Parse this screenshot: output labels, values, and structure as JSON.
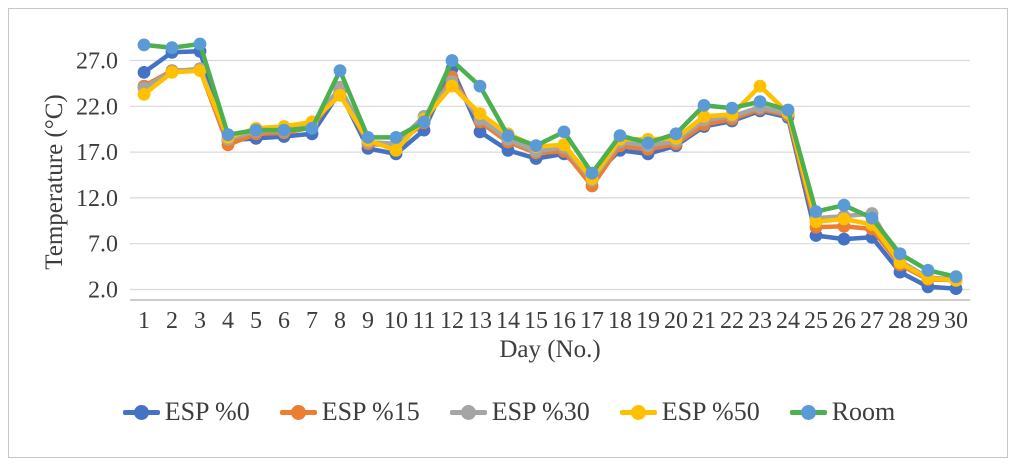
{
  "chart_data": {
    "type": "line",
    "title": "",
    "xlabel": "Day (No.)",
    "ylabel": "Temperature (°C)",
    "x": [
      1,
      2,
      3,
      4,
      5,
      6,
      7,
      8,
      9,
      10,
      11,
      12,
      13,
      14,
      15,
      16,
      17,
      18,
      19,
      20,
      21,
      22,
      23,
      24,
      25,
      26,
      27,
      28,
      29,
      30
    ],
    "ytick_values": [
      27,
      22,
      17,
      12,
      7,
      2
    ],
    "ytick_labels": [
      "27.0",
      "22.0",
      "17.0",
      "12.0",
      "7.0",
      "2.0"
    ],
    "ylim": [
      0.8,
      30.4
    ],
    "grid": true,
    "legend_position": "bottom",
    "series": [
      {
        "name": "ESP %0",
        "color": "#4472C4",
        "marker_color": "#4472C4",
        "values": [
          25.7,
          27.9,
          28.0,
          18.3,
          18.5,
          18.7,
          19.0,
          23.6,
          17.4,
          16.8,
          19.4,
          26.1,
          19.2,
          17.2,
          16.3,
          16.8,
          14.2,
          17.2,
          16.8,
          17.7,
          19.8,
          20.4,
          21.5,
          20.8,
          7.9,
          7.5,
          7.7,
          3.9,
          2.3,
          2.1
        ]
      },
      {
        "name": "ESP %15",
        "color": "#ED7D31",
        "marker_color": "#ED7D31",
        "values": [
          24.2,
          25.9,
          26.0,
          17.8,
          19.0,
          19.1,
          19.7,
          23.9,
          17.9,
          17.7,
          20.2,
          25.2,
          20.3,
          18.1,
          16.9,
          17.1,
          13.3,
          17.7,
          17.3,
          17.9,
          20.0,
          20.6,
          21.7,
          21.0,
          8.8,
          8.9,
          8.6,
          4.7,
          3.1,
          3.0
        ]
      },
      {
        "name": "ESP %30",
        "color": "#A5A5A5",
        "marker_color": "#A5A5A5",
        "values": [
          24.0,
          25.8,
          26.1,
          18.4,
          19.3,
          19.3,
          19.9,
          24.1,
          18.1,
          17.9,
          20.9,
          24.7,
          20.6,
          18.4,
          17.1,
          17.5,
          13.9,
          18.1,
          17.7,
          18.2,
          20.5,
          20.9,
          21.9,
          21.2,
          9.8,
          10.0,
          10.3,
          5.1,
          3.3,
          3.1
        ]
      },
      {
        "name": "ESP %50",
        "color": "#FFC000",
        "marker_color": "#FFC000",
        "values": [
          23.3,
          25.7,
          25.9,
          18.6,
          19.6,
          19.8,
          20.3,
          23.2,
          18.3,
          17.2,
          20.6,
          24.2,
          21.2,
          19.0,
          17.6,
          17.8,
          14.1,
          18.4,
          18.4,
          18.5,
          20.9,
          21.1,
          24.2,
          21.3,
          9.4,
          9.7,
          9.1,
          4.9,
          3.2,
          3.0
        ]
      },
      {
        "name": "Room",
        "color": "#4CAF50",
        "marker_color": "#5B9BD5",
        "values": [
          28.7,
          28.4,
          28.8,
          18.9,
          19.4,
          19.4,
          19.6,
          25.9,
          18.6,
          18.6,
          20.3,
          27.0,
          24.2,
          18.8,
          17.7,
          19.2,
          14.7,
          18.8,
          18.0,
          19.0,
          22.1,
          21.8,
          22.5,
          21.6,
          10.5,
          11.2,
          9.8,
          5.9,
          4.1,
          3.4
        ]
      }
    ]
  },
  "style": {
    "gridline_color": "#D9D9D9",
    "axis_line_color": "#ADADAD",
    "text_color": "#3d3d3d"
  }
}
